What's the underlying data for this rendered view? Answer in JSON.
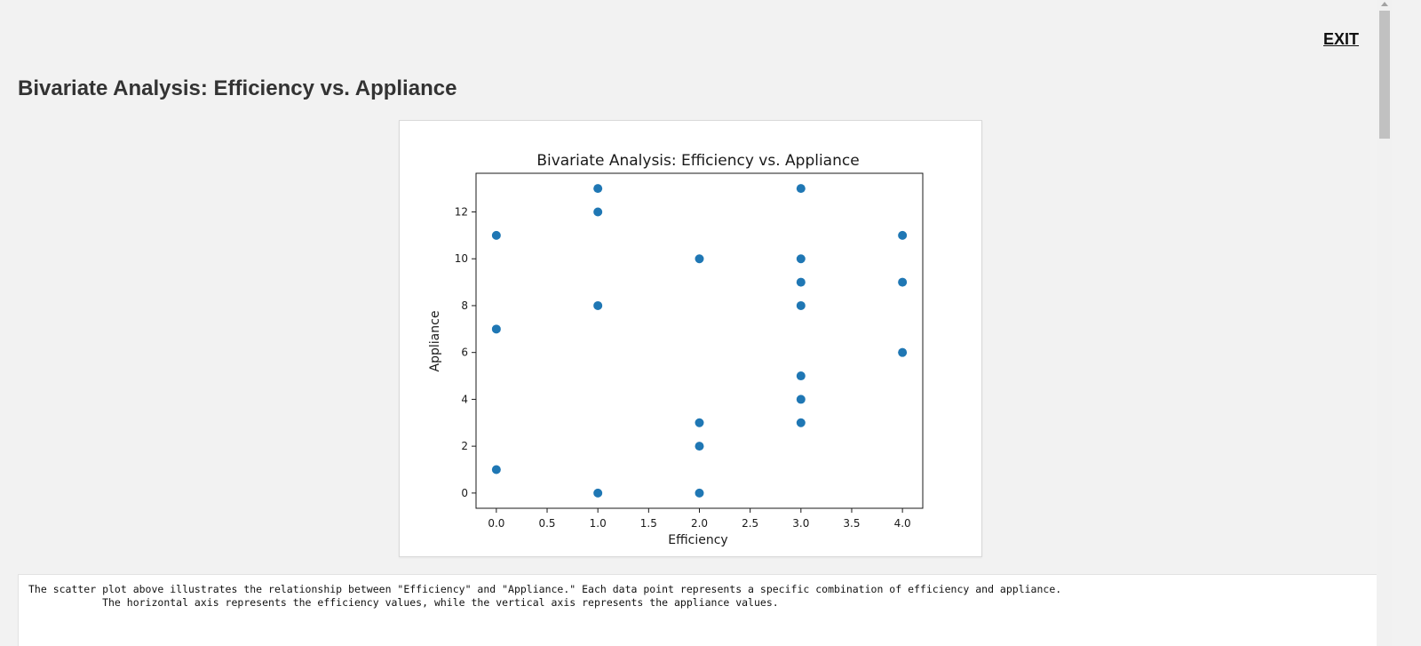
{
  "header": {
    "exit_label": "EXIT",
    "page_title": "Bivariate Analysis: Efficiency vs. Appliance"
  },
  "description": {
    "line1": "The scatter plot above illustrates the relationship between \"Efficiency\" and \"Appliance.\" Each data point represents a specific combination of efficiency and appliance.",
    "line2": "            The horizontal axis represents the efficiency values, while the vertical axis represents the appliance values."
  },
  "colors": {
    "point": "#1f77b4",
    "axis": "#1a1a1a"
  },
  "chart_data": {
    "type": "scatter",
    "title": "Bivariate Analysis: Efficiency vs. Appliance",
    "xlabel": "Efficiency",
    "ylabel": "Appliance",
    "xlim": [
      -0.2,
      4.2
    ],
    "ylim": [
      -0.65,
      13.65
    ],
    "xticks": [
      0.0,
      0.5,
      1.0,
      1.5,
      2.0,
      2.5,
      3.0,
      3.5,
      4.0
    ],
    "xtick_labels": [
      "0.0",
      "0.5",
      "1.0",
      "1.5",
      "2.0",
      "2.5",
      "3.0",
      "3.5",
      "4.0"
    ],
    "yticks": [
      0,
      2,
      4,
      6,
      8,
      10,
      12
    ],
    "ytick_labels": [
      "0",
      "2",
      "4",
      "6",
      "8",
      "10",
      "12"
    ],
    "grid": false,
    "legend": false,
    "points": [
      {
        "x": 0,
        "y": 11
      },
      {
        "x": 0,
        "y": 7
      },
      {
        "x": 0,
        "y": 1
      },
      {
        "x": 1,
        "y": 13
      },
      {
        "x": 1,
        "y": 12
      },
      {
        "x": 1,
        "y": 8
      },
      {
        "x": 1,
        "y": 0
      },
      {
        "x": 2,
        "y": 10
      },
      {
        "x": 2,
        "y": 3
      },
      {
        "x": 2,
        "y": 2
      },
      {
        "x": 2,
        "y": 0
      },
      {
        "x": 3,
        "y": 13
      },
      {
        "x": 3,
        "y": 10
      },
      {
        "x": 3,
        "y": 9
      },
      {
        "x": 3,
        "y": 8
      },
      {
        "x": 3,
        "y": 5
      },
      {
        "x": 3,
        "y": 4
      },
      {
        "x": 3,
        "y": 3
      },
      {
        "x": 4,
        "y": 11
      },
      {
        "x": 4,
        "y": 9
      },
      {
        "x": 4,
        "y": 6
      }
    ]
  }
}
